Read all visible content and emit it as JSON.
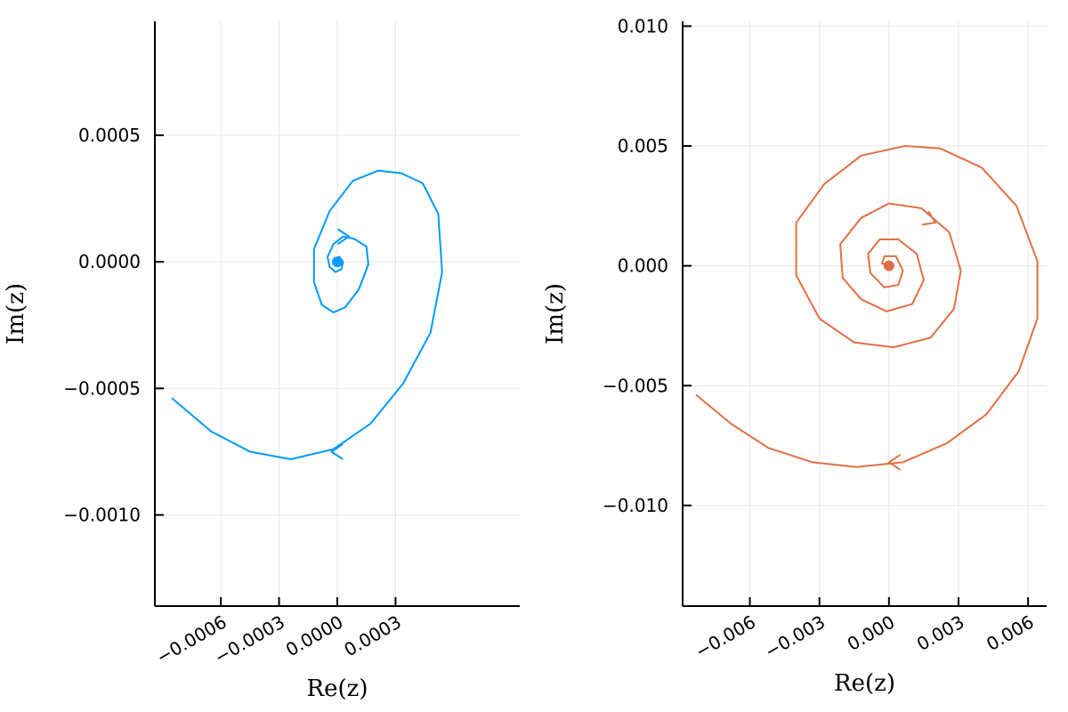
{
  "chart_data": [
    {
      "type": "line",
      "xlabel": "Re(z)",
      "ylabel": "Im(z)",
      "xlim": [
        -0.00094,
        0.00094
      ],
      "ylim": [
        -0.00136,
        0.00095
      ],
      "xticks": [
        -0.0006,
        -0.0003,
        0.0,
        0.0003
      ],
      "xtick_labels": [
        "−0.0006",
        "−0.0003",
        "0.0000",
        "0.0003"
      ],
      "yticks": [
        0.0005,
        0.0,
        -0.0005,
        -0.001
      ],
      "ytick_labels": [
        "0.0005",
        "0.0000",
        "−0.0005",
        "−0.0010"
      ],
      "grid": true,
      "color": "#009AFA",
      "series": [
        {
          "x": [
            -0.00085,
            -0.00065,
            -0.00045,
            -0.00024,
            -2e-05,
            0.00017,
            0.00034,
            0.00048,
            0.00054,
            0.00052,
            0.00044,
            0.00033,
            0.00021,
            8e-05,
            -4e-05,
            -0.00012,
            -0.00012,
            -8e-05,
            -2e-05,
            4e-05,
            0.00011,
            0.00016,
            0.00015,
            9e-05,
            3e-05,
            -2e-05,
            -5e-05,
            -4e-05,
            -1e-05,
            2e-05,
            3e-05,
            1e-05,
            -1e-05,
            0.0
          ],
          "y": [
            -0.00054,
            -0.00067,
            -0.00075,
            -0.00078,
            -0.00074,
            -0.00064,
            -0.00048,
            -0.00028,
            -4e-05,
            0.00019,
            0.00031,
            0.00035,
            0.00036,
            0.00032,
            0.0002,
            5e-05,
            -8e-05,
            -0.00017,
            -0.0002,
            -0.00018,
            -0.00011,
            -1e-05,
            6e-05,
            9e-05,
            0.0001,
            7e-05,
            2e-05,
            -2e-05,
            -4e-05,
            -3e-05,
            0.0,
            2e-05,
            1e-05,
            0.0
          ]
        }
      ],
      "arrows": [
        {
          "x": 6e-05,
          "y": 0.0001,
          "direction": "right"
        },
        {
          "x": -3e-05,
          "y": -0.00075,
          "direction": "left"
        }
      ],
      "end_marker": {
        "x": 0.0,
        "y": 0.0
      }
    },
    {
      "type": "line",
      "xlabel": "Re(z)",
      "ylabel": "Im(z)",
      "xlim": [
        -0.0089,
        0.0068
      ],
      "ylim": [
        -0.0142,
        0.0102
      ],
      "xticks": [
        -0.006,
        -0.003,
        0.0,
        0.003,
        0.006
      ],
      "xtick_labels": [
        "−0.006",
        "−0.003",
        "0.000",
        "0.003",
        "0.006"
      ],
      "yticks": [
        0.01,
        0.005,
        0.0,
        -0.005,
        -0.01
      ],
      "ytick_labels": [
        "0.010",
        "0.005",
        "0.000",
        "−0.005",
        "−0.010"
      ],
      "grid": true,
      "color": "#E26F46",
      "series": [
        {
          "x": [
            -0.0083,
            -0.0068,
            -0.0052,
            -0.0033,
            -0.0014,
            0.0006,
            0.0025,
            0.0042,
            0.0056,
            0.0064,
            0.0064,
            0.0055,
            0.004,
            0.0022,
            0.0007,
            -0.0012,
            -0.0028,
            -0.004,
            -0.004,
            -0.003,
            -0.0015,
            0.0002,
            0.0018,
            0.0028,
            0.0031,
            0.0026,
            0.0014,
            0.0,
            -0.0012,
            -0.0021,
            -0.002,
            -0.0012,
            -0.0001,
            0.001,
            0.0015,
            0.0012,
            0.0004,
            -0.0004,
            -0.0009,
            -0.0008,
            -0.0002,
            0.0004,
            0.0006,
            0.0003,
            -0.0002,
            -0.0003,
            0.0
          ],
          "y": [
            -0.0054,
            -0.0066,
            -0.0076,
            -0.0082,
            -0.0084,
            -0.0082,
            -0.0074,
            -0.0062,
            -0.0044,
            -0.0022,
            0.0002,
            0.0025,
            0.0041,
            0.0049,
            0.005,
            0.0046,
            0.0034,
            0.0018,
            -0.0004,
            -0.0022,
            -0.0032,
            -0.0034,
            -0.003,
            -0.0018,
            -0.0002,
            0.0014,
            0.0024,
            0.0026,
            0.002,
            0.0009,
            -0.0005,
            -0.0014,
            -0.0019,
            -0.0016,
            -0.0006,
            0.0005,
            0.0011,
            0.0011,
            0.0005,
            -0.0003,
            -0.0009,
            -0.0008,
            -0.0002,
            0.0004,
            0.0004,
            0.0001,
            0.0
          ]
        }
      ],
      "arrows": [
        {
          "x": 0.002,
          "y": 0.0018,
          "direction": "down-right"
        },
        {
          "x": 0.0,
          "y": -0.0082,
          "direction": "left"
        }
      ],
      "end_marker": {
        "x": 0.0,
        "y": 0.0
      }
    }
  ]
}
